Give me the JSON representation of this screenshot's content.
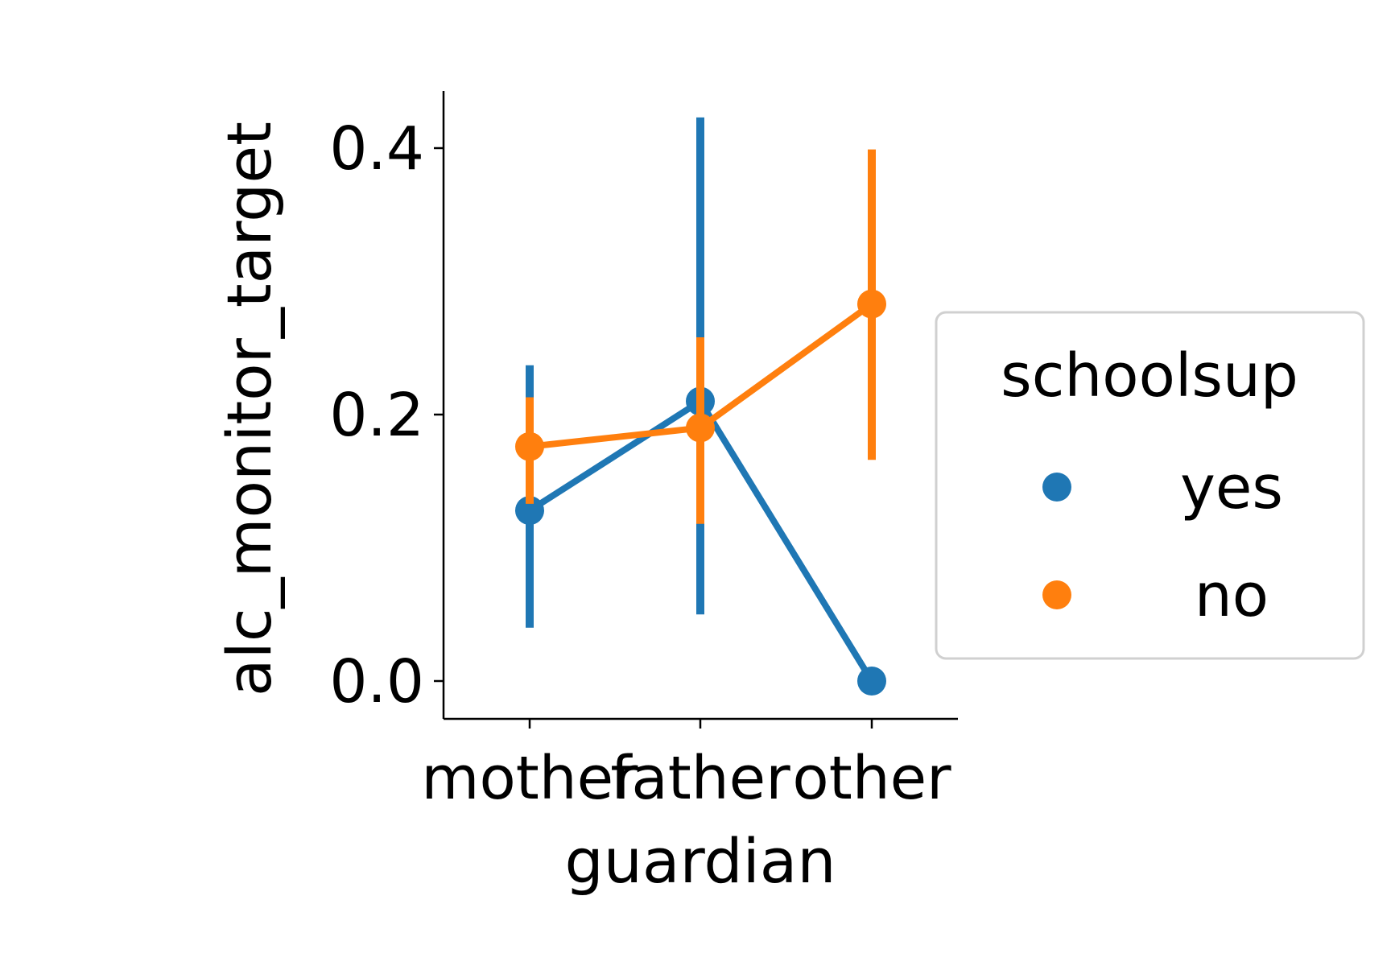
{
  "chart_data": {
    "type": "line",
    "xlabel": "guardian",
    "ylabel": "alc_monitor_target",
    "categories": [
      "mother",
      "father",
      "other"
    ],
    "ylim": [
      -0.002,
      0.445
    ],
    "yticks": [
      0.0,
      0.2,
      0.4
    ],
    "ytick_labels": [
      "0.0",
      "0.2",
      "0.4"
    ],
    "grid": false,
    "legend": {
      "title": "schoolsup",
      "placement": "right",
      "entries": [
        "yes",
        "no"
      ]
    },
    "series": [
      {
        "name": "yes",
        "color": "#1f77b4",
        "values": [
          0.128,
          0.21,
          0.0
        ],
        "ci_low": [
          0.04,
          0.05,
          null
        ],
        "ci_high": [
          0.237,
          0.423,
          null
        ]
      },
      {
        "name": "no",
        "color": "#ff7f0e",
        "values": [
          0.176,
          0.19,
          0.283
        ],
        "ci_low": [
          0.133,
          0.118,
          0.166
        ],
        "ci_high": [
          0.213,
          0.258,
          0.399
        ]
      }
    ]
  }
}
